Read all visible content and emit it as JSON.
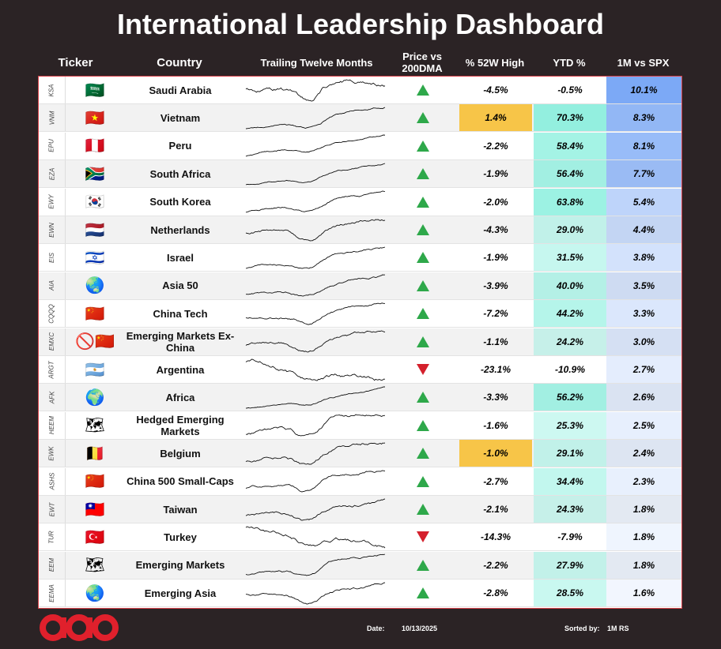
{
  "title": "International Leadership Dashboard",
  "headers": {
    "ticker": "Ticker",
    "country": "Country",
    "ttm": "Trailing Twelve Months",
    "price_vs_l1": "Price vs",
    "price_vs_l2": "200DMA",
    "pct52w": "% 52W High",
    "ytd": "YTD %",
    "rs": "1M vs SPX"
  },
  "colors": {
    "up": "#2ea84a",
    "down": "#d4202c",
    "highlight": "#f7c548",
    "ytd_strong": "#a8f2e6",
    "rs_strong": "#8fb4f5",
    "border": "#d9434a"
  },
  "rows": [
    {
      "ticker": "KSA",
      "flag": "🇸🇦",
      "country": "Saudi Arabia",
      "trend": "up",
      "pct52w": "-4.5%",
      "ytd": "-0.5%",
      "rs": "10.1%",
      "pct_hl": false
    },
    {
      "ticker": "VNM",
      "flag": "🇻🇳",
      "country": "Vietnam",
      "trend": "up",
      "pct52w": "1.4%",
      "ytd": "70.3%",
      "rs": "8.3%",
      "pct_hl": true
    },
    {
      "ticker": "EPU",
      "flag": "🇵🇪",
      "country": "Peru",
      "trend": "up",
      "pct52w": "-2.2%",
      "ytd": "58.4%",
      "rs": "8.1%",
      "pct_hl": false
    },
    {
      "ticker": "EZA",
      "flag": "🇿🇦",
      "country": "South Africa",
      "trend": "up",
      "pct52w": "-1.9%",
      "ytd": "56.4%",
      "rs": "7.7%",
      "pct_hl": false
    },
    {
      "ticker": "EWY",
      "flag": "🇰🇷",
      "country": "South Korea",
      "trend": "up",
      "pct52w": "-2.0%",
      "ytd": "63.8%",
      "rs": "5.4%",
      "pct_hl": false
    },
    {
      "ticker": "EWN",
      "flag": "🇳🇱",
      "country": "Netherlands",
      "trend": "up",
      "pct52w": "-4.3%",
      "ytd": "29.0%",
      "rs": "4.4%",
      "pct_hl": false
    },
    {
      "ticker": "EIS",
      "flag": "🇮🇱",
      "country": "Israel",
      "trend": "up",
      "pct52w": "-1.9%",
      "ytd": "31.5%",
      "rs": "3.8%",
      "pct_hl": false
    },
    {
      "ticker": "AIA",
      "flag": "🌏",
      "country": "Asia 50",
      "trend": "up",
      "pct52w": "-3.9%",
      "ytd": "40.0%",
      "rs": "3.5%",
      "pct_hl": false
    },
    {
      "ticker": "CQQQ",
      "flag": "🇨🇳",
      "country": "China Tech",
      "trend": "up",
      "pct52w": "-7.2%",
      "ytd": "44.2%",
      "rs": "3.3%",
      "pct_hl": false
    },
    {
      "ticker": "EMXC",
      "flag": "🚫🇨🇳",
      "country": "Emerging Markets Ex-China",
      "trend": "up",
      "pct52w": "-1.1%",
      "ytd": "24.2%",
      "rs": "3.0%",
      "pct_hl": false
    },
    {
      "ticker": "ARGT",
      "flag": "🇦🇷",
      "country": "Argentina",
      "trend": "down",
      "pct52w": "-23.1%",
      "ytd": "-10.9%",
      "rs": "2.7%",
      "pct_hl": false
    },
    {
      "ticker": "AFK",
      "flag": "🌍",
      "country": "Africa",
      "trend": "up",
      "pct52w": "-3.3%",
      "ytd": "56.2%",
      "rs": "2.6%",
      "pct_hl": false
    },
    {
      "ticker": "HEEM",
      "flag": "🗺",
      "country": "Hedged Emerging Markets",
      "trend": "up",
      "pct52w": "-1.6%",
      "ytd": "25.3%",
      "rs": "2.5%",
      "pct_hl": false
    },
    {
      "ticker": "EWK",
      "flag": "🇧🇪",
      "country": "Belgium",
      "trend": "up",
      "pct52w": "-1.0%",
      "ytd": "29.1%",
      "rs": "2.4%",
      "pct_hl": true
    },
    {
      "ticker": "ASHS",
      "flag": "🇨🇳",
      "country": "China 500 Small-Caps",
      "trend": "up",
      "pct52w": "-2.7%",
      "ytd": "34.4%",
      "rs": "2.3%",
      "pct_hl": false
    },
    {
      "ticker": "EWT",
      "flag": "🇹🇼",
      "country": "Taiwan",
      "trend": "up",
      "pct52w": "-2.1%",
      "ytd": "24.3%",
      "rs": "1.8%",
      "pct_hl": false
    },
    {
      "ticker": "TUR",
      "flag": "🇹🇷",
      "country": "Turkey",
      "trend": "down",
      "pct52w": "-14.3%",
      "ytd": "-7.9%",
      "rs": "1.8%",
      "pct_hl": false
    },
    {
      "ticker": "EEM",
      "flag": "🗺",
      "country": "Emerging Markets",
      "trend": "up",
      "pct52w": "-2.2%",
      "ytd": "27.9%",
      "rs": "1.8%",
      "pct_hl": false
    },
    {
      "ticker": "EEMA",
      "flag": "🌏",
      "country": "Emerging Asia",
      "trend": "up",
      "pct52w": "-2.8%",
      "ytd": "28.5%",
      "rs": "1.6%",
      "pct_hl": false
    }
  ],
  "footer": {
    "logo": "aao",
    "date_label": "Date:",
    "date": "10/13/2025",
    "sorted_label": "Sorted by:",
    "sorted": "1M RS"
  }
}
